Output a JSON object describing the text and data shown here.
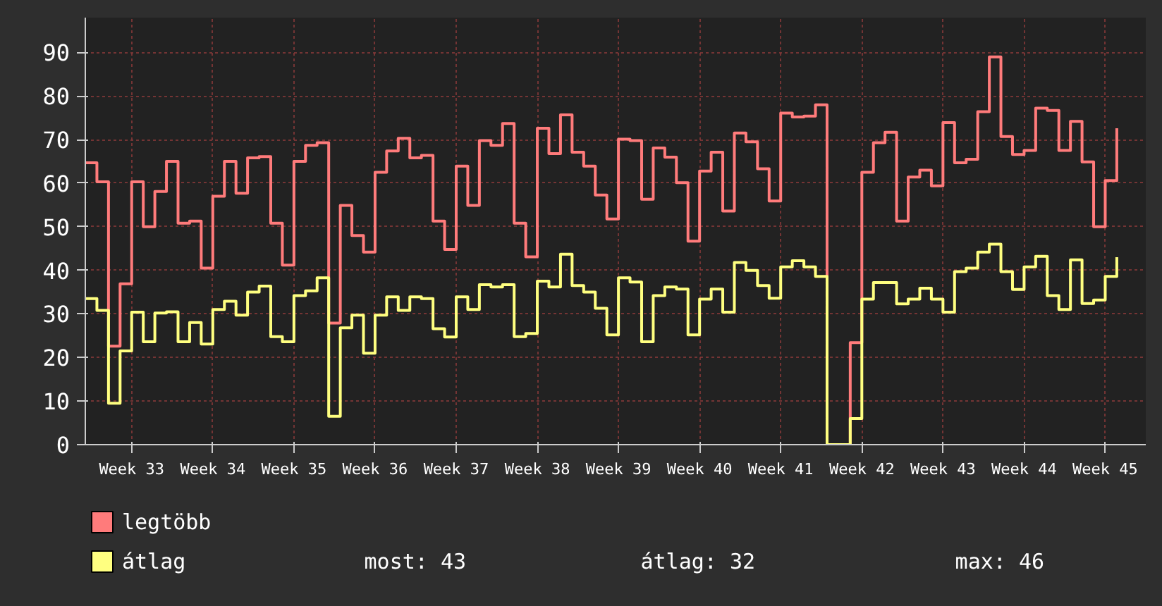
{
  "chart_data": {
    "type": "step",
    "categories": [
      null,
      null,
      null,
      null,
      "Week 33",
      null,
      null,
      null,
      null,
      null,
      null,
      "Week 34",
      null,
      null,
      null,
      null,
      null,
      null,
      "Week 35",
      null,
      null,
      null,
      null,
      null,
      null,
      "Week 36",
      null,
      null,
      null,
      null,
      null,
      null,
      "Week 37",
      null,
      null,
      null,
      null,
      null,
      null,
      "Week 38",
      null,
      null,
      null,
      null,
      null,
      null,
      "Week 39",
      null,
      null,
      null,
      null,
      null,
      null,
      "Week 40",
      null,
      null,
      null,
      null,
      null,
      null,
      "Week 41",
      null,
      null,
      null,
      null,
      null,
      null,
      "Week 42",
      null,
      null,
      null,
      null,
      null,
      null,
      "Week 43",
      null,
      null,
      null,
      null,
      null,
      null,
      "Week 44",
      null,
      null,
      null,
      null,
      null,
      null,
      "Week 45",
      null
    ],
    "series": [
      {
        "name": "legtöbb",
        "color": "#ff7b7b",
        "values": [
          64.7,
          60.3,
          22.6,
          36.9,
          60.3,
          50,
          58.1,
          65,
          50.8,
          51.3,
          40.5,
          57,
          65,
          57.7,
          65.8,
          66.1,
          50.8,
          41.2,
          65,
          68.7,
          69.3,
          27.9,
          54.9,
          48,
          44.2,
          62.5,
          67.4,
          70.3,
          65.8,
          66.4,
          51.3,
          44.8,
          63.9,
          54.9,
          69.8,
          68.7,
          73.7,
          50.8,
          43.1,
          72.6,
          66.8,
          75.7,
          67.1,
          63.9,
          57.3,
          51.8,
          70.1,
          69.8,
          56.3,
          68.1,
          66,
          60.1,
          46.7,
          62.8,
          67.1,
          53.6,
          71.5,
          69.5,
          63.3,
          55.9,
          76.1,
          75.2,
          75.4,
          78,
          0,
          0,
          23.4,
          62.5,
          69.3,
          71.7,
          51.3,
          61.4,
          63,
          59.4,
          73.9,
          64.7,
          65.5,
          76.4,
          89,
          70.7,
          66.6,
          67.5,
          77.2,
          76.7,
          67.5,
          74.2,
          64.9,
          50,
          60.6,
          72.6
        ]
      },
      {
        "name": "átlag",
        "color": "#ffff80",
        "values": [
          33.5,
          30.8,
          9.5,
          21.5,
          30.4,
          23.6,
          30.2,
          30.5,
          23.6,
          28,
          23.1,
          31,
          32.9,
          29.7,
          35,
          36.4,
          24.8,
          23.6,
          34.2,
          35.3,
          38.3,
          6.5,
          26.8,
          29.7,
          21,
          29.7,
          33.9,
          30.8,
          33.9,
          33.5,
          26.6,
          24.7,
          33.9,
          31,
          36.7,
          36.2,
          36.7,
          24.8,
          25.5,
          37.5,
          36.2,
          43.7,
          36.5,
          35,
          31.3,
          25.2,
          38.3,
          37.3,
          23.6,
          34.2,
          36.2,
          35.7,
          25.2,
          33.4,
          35.7,
          30.4,
          41.8,
          40,
          36.5,
          33.6,
          40.8,
          42.2,
          40.8,
          38.6,
          0,
          0,
          6,
          33.4,
          37.2,
          37.2,
          32.3,
          33.4,
          35.9,
          33.4,
          30.4,
          39.7,
          40.5,
          44.2,
          46,
          39.7,
          35.6,
          40.8,
          43.2,
          34.2,
          31,
          42.4,
          32.4,
          33.2,
          38.6,
          43
        ]
      }
    ],
    "ylim": [
      0,
      98
    ],
    "yticks": [
      0,
      10,
      20,
      30,
      40,
      50,
      60,
      70,
      80,
      90
    ],
    "grid": true,
    "legend": "bottom",
    "annotations": [
      "most: 43",
      "átlag: 32",
      "max: 46"
    ]
  }
}
